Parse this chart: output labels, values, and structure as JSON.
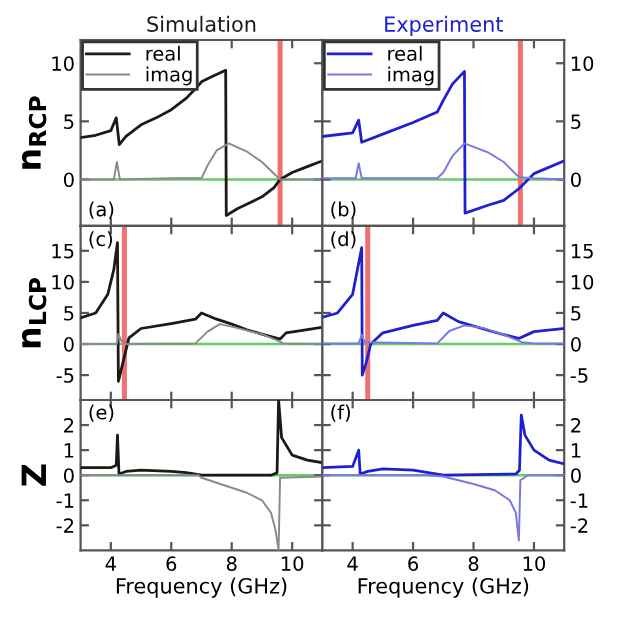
{
  "chart_data": [
    {
      "type": "line",
      "title": "Simulation",
      "ylabel": "n$_{RCP}$",
      "annotations": [
        "(a)"
      ],
      "xlim": [
        3,
        11
      ],
      "xticks": [
        4,
        6,
        8,
        10
      ],
      "ylim": [
        -4,
        12
      ],
      "yticks": [
        0,
        5,
        10
      ],
      "tick_labels": "y",
      "legend": "top left",
      "grid": false,
      "ref_lines": [
        {
          "axis": "y",
          "value": 0,
          "color": "#66cc66"
        },
        {
          "axis": "x",
          "value": 9.6,
          "color": "#f07070"
        }
      ],
      "series": [
        {
          "name": "real",
          "color": "#1a1a1a",
          "x": [
            3.0,
            3.5,
            4.0,
            4.18,
            4.28,
            4.5,
            5.0,
            5.5,
            6.0,
            6.5,
            6.8,
            7.0,
            7.3,
            7.8,
            7.82,
            8.2,
            8.6,
            9.0,
            9.4,
            9.6,
            10.0,
            10.5,
            11.0
          ],
          "values": [
            3.6,
            3.8,
            4.2,
            5.3,
            3.0,
            3.7,
            4.7,
            5.3,
            6.0,
            7.0,
            7.8,
            8.4,
            8.8,
            9.4,
            -3.1,
            -2.5,
            -2.0,
            -1.5,
            -0.7,
            0.0,
            0.6,
            1.1,
            1.6
          ]
        },
        {
          "name": "imag",
          "color": "#8a8a8a",
          "x": [
            3.0,
            4.1,
            4.2,
            4.3,
            6.0,
            7.0,
            7.2,
            7.5,
            7.9,
            8.5,
            9.0,
            9.6,
            10.0,
            11.0
          ],
          "values": [
            0.0,
            0.0,
            1.5,
            0.0,
            0.1,
            0.1,
            1.2,
            2.5,
            3.1,
            2.4,
            1.5,
            0.0,
            0.0,
            0.0
          ]
        }
      ]
    },
    {
      "type": "line",
      "title": "Experiment",
      "annotations": [
        "(b)"
      ],
      "xlim": [
        3,
        11
      ],
      "xticks": [
        4,
        6,
        8,
        10
      ],
      "ylim": [
        -4,
        12
      ],
      "yticks": [
        0,
        5,
        10
      ],
      "tick_labels": "y",
      "legend": "top left",
      "grid": false,
      "ref_lines": [
        {
          "axis": "y",
          "value": 0,
          "color": "#66cc66"
        },
        {
          "axis": "x",
          "value": 9.55,
          "color": "#f07070"
        }
      ],
      "series": [
        {
          "name": "real",
          "color": "#2020d0",
          "x": [
            3.0,
            4.0,
            4.2,
            4.3,
            5.0,
            6.0,
            6.8,
            7.0,
            7.3,
            7.7,
            7.72,
            8.5,
            9.0,
            9.5,
            10.0,
            11.0
          ],
          "values": [
            3.7,
            4.0,
            5.1,
            3.2,
            3.9,
            4.9,
            5.8,
            6.8,
            8.2,
            9.3,
            -2.9,
            -2.2,
            -1.8,
            -0.8,
            0.5,
            1.6
          ]
        },
        {
          "name": "imag",
          "color": "#7878e0",
          "x": [
            3.0,
            4.1,
            4.2,
            4.3,
            6.8,
            7.0,
            7.3,
            7.7,
            8.5,
            9.0,
            9.5,
            10.0,
            11.0
          ],
          "values": [
            0.1,
            0.1,
            1.4,
            0.1,
            0.1,
            0.6,
            2.0,
            3.1,
            2.3,
            1.5,
            0.2,
            0.1,
            0.0
          ]
        }
      ]
    },
    {
      "type": "line",
      "ylabel": "n$_{LCP}$",
      "annotations": [
        "(c)"
      ],
      "xlim": [
        3,
        11
      ],
      "xticks": [
        4,
        6,
        8,
        10
      ],
      "ylim": [
        -9,
        19
      ],
      "yticks": [
        -5,
        0,
        5,
        10,
        15
      ],
      "tick_labels": "y",
      "grid": false,
      "ref_lines": [
        {
          "axis": "y",
          "value": 0,
          "color": "#66cc66"
        },
        {
          "axis": "x",
          "value": 4.45,
          "color": "#f07070"
        }
      ],
      "series": [
        {
          "color": "#1a1a1a",
          "x": [
            3.0,
            3.5,
            3.9,
            4.1,
            4.22,
            4.25,
            4.4,
            4.6,
            5.0,
            6.0,
            6.8,
            7.0,
            7.5,
            8.0,
            8.5,
            9.0,
            9.6,
            9.8,
            10.5,
            11.0
          ],
          "values": [
            4.2,
            5.0,
            8,
            12,
            16.3,
            -6,
            -3,
            1.0,
            2.5,
            3.3,
            4.0,
            5.0,
            4.0,
            3.2,
            2.3,
            1.6,
            0.8,
            1.8,
            2.3,
            2.7
          ]
        },
        {
          "color": "#8a8a8a",
          "x": [
            3.0,
            4.2,
            4.25,
            4.35,
            4.5,
            6.8,
            7.2,
            7.6,
            8.0,
            9.0,
            9.5,
            9.7,
            11.0
          ],
          "values": [
            0.0,
            0.0,
            1.6,
            0.5,
            0.0,
            0.1,
            2.0,
            3.2,
            2.8,
            1.6,
            0.6,
            0.1,
            0.0
          ]
        }
      ]
    },
    {
      "type": "line",
      "annotations": [
        "(d)"
      ],
      "xlim": [
        3,
        11
      ],
      "xticks": [
        4,
        6,
        8,
        10
      ],
      "ylim": [
        -9,
        19
      ],
      "yticks": [
        -5,
        0,
        5,
        10,
        15
      ],
      "tick_labels": "y",
      "grid": false,
      "ref_lines": [
        {
          "axis": "y",
          "value": 0,
          "color": "#66cc66"
        },
        {
          "axis": "x",
          "value": 4.5,
          "color": "#f07070"
        }
      ],
      "series": [
        {
          "color": "#2020d0",
          "x": [
            3.0,
            3.5,
            4.0,
            4.3,
            4.32,
            4.45,
            4.6,
            5.0,
            6.0,
            6.8,
            7.0,
            7.5,
            8.0,
            8.5,
            9.0,
            9.5,
            10.0,
            11.0
          ],
          "values": [
            4.3,
            5.0,
            8,
            15.5,
            -5,
            -3,
            0,
            1.8,
            3.0,
            3.8,
            5.0,
            3.6,
            2.9,
            2.2,
            1.5,
            0.9,
            2.0,
            2.5
          ]
        },
        {
          "color": "#7878e0",
          "x": [
            3.0,
            4.2,
            4.3,
            4.4,
            6.8,
            7.2,
            7.7,
            8.3,
            9.0,
            9.6,
            10.0,
            11.0
          ],
          "values": [
            0.1,
            0.1,
            1.5,
            0.3,
            0.1,
            2.1,
            3.0,
            2.6,
            1.5,
            0.3,
            0.1,
            0.1
          ]
        }
      ]
    },
    {
      "type": "line",
      "ylabel": "Z",
      "xlabel": "Frequency (GHz)",
      "annotations": [
        "(e)"
      ],
      "xlim": [
        3,
        11
      ],
      "xticks": [
        4,
        6,
        8,
        10
      ],
      "ylim": [
        -3,
        3
      ],
      "yticks": [
        -2,
        -1,
        0,
        1,
        2
      ],
      "grid": false,
      "ref_lines": [
        {
          "axis": "y",
          "value": 0,
          "color": "#66cc66"
        }
      ],
      "series": [
        {
          "color": "#1a1a1a",
          "x": [
            3.0,
            4.0,
            4.18,
            4.22,
            4.27,
            4.5,
            5.0,
            6.0,
            6.5,
            7.0,
            7.5,
            9.3,
            9.5,
            9.55,
            9.65,
            10.0,
            10.5,
            11.0
          ],
          "values": [
            0.3,
            0.3,
            0.4,
            1.6,
            0.05,
            0.15,
            0.2,
            0.15,
            0.1,
            0.0,
            0.0,
            0.0,
            0.1,
            3.0,
            1.5,
            0.8,
            0.6,
            0.5
          ]
        },
        {
          "color": "#8a8a8a",
          "x": [
            3.0,
            6.9,
            7.0,
            8.0,
            8.5,
            9.0,
            9.3,
            9.45,
            9.55,
            9.6,
            11.0
          ],
          "values": [
            0.0,
            0.0,
            -0.1,
            -0.5,
            -0.7,
            -1.0,
            -1.5,
            -2.2,
            -3.0,
            -0.1,
            -0.05
          ]
        }
      ]
    },
    {
      "type": "line",
      "xlabel": "Frequency (GHz)",
      "annotations": [
        "(f)"
      ],
      "xlim": [
        3,
        11
      ],
      "xticks": [
        4,
        6,
        8,
        10
      ],
      "ylim": [
        -3,
        3
      ],
      "yticks": [
        -2,
        -1,
        0,
        1,
        2
      ],
      "grid": false,
      "ref_lines": [
        {
          "axis": "y",
          "value": 0,
          "color": "#66cc66"
        }
      ],
      "series": [
        {
          "color": "#2020d0",
          "x": [
            3.0,
            4.0,
            4.2,
            4.25,
            4.5,
            5.0,
            6.0,
            6.5,
            7.0,
            9.4,
            9.52,
            9.58,
            9.7,
            10.0,
            10.5,
            11.0
          ],
          "values": [
            0.3,
            0.35,
            1.0,
            0.05,
            0.15,
            0.25,
            0.2,
            0.1,
            0.0,
            0.05,
            0.2,
            2.4,
            1.6,
            1.0,
            0.6,
            0.45
          ]
        },
        {
          "color": "#7878e0",
          "x": [
            3.0,
            6.5,
            7.0,
            8.0,
            8.7,
            9.2,
            9.4,
            9.5,
            9.55,
            9.8,
            11.0
          ],
          "values": [
            0.0,
            0.0,
            -0.05,
            -0.35,
            -0.6,
            -1.0,
            -1.5,
            -2.6,
            -0.2,
            0.0,
            0.0
          ]
        }
      ]
    }
  ]
}
